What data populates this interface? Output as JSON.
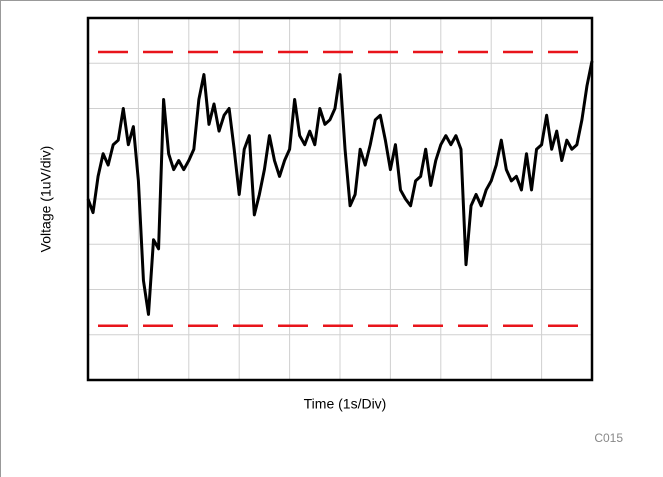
{
  "chart_data": {
    "type": "line",
    "xlabel": "Time (1s/Div)",
    "ylabel": "Voltage (1uV/div)",
    "code": "C015",
    "xlim": [
      0,
      10
    ],
    "ylim": [
      -4,
      4
    ],
    "xticks": [
      0,
      1,
      2,
      3,
      4,
      5,
      6,
      7,
      8,
      9,
      10
    ],
    "yticks": [
      -4,
      -3,
      -2,
      -1,
      0,
      1,
      2,
      3,
      4
    ],
    "grid": true,
    "limit_lines": [
      3.25,
      -2.8
    ],
    "limit_color": "#e8141b",
    "series": [
      {
        "color": "#000000",
        "x": [
          0,
          0.1,
          0.2,
          0.3,
          0.4,
          0.5,
          0.6,
          0.7,
          0.8,
          0.9,
          1,
          1.1,
          1.2,
          1.3,
          1.4,
          1.5,
          1.6,
          1.7,
          1.8,
          1.9,
          2,
          2.1,
          2.2,
          2.3,
          2.4,
          2.5,
          2.6,
          2.7,
          2.8,
          2.9,
          3,
          3.1,
          3.2,
          3.3,
          3.4,
          3.5,
          3.6,
          3.7,
          3.8,
          3.9,
          4,
          4.1,
          4.2,
          4.3,
          4.4,
          4.5,
          4.6,
          4.7,
          4.8,
          4.9,
          5,
          5.1,
          5.2,
          5.3,
          5.4,
          5.5,
          5.6,
          5.7,
          5.8,
          5.9,
          6,
          6.1,
          6.2,
          6.3,
          6.4,
          6.5,
          6.6,
          6.7,
          6.8,
          6.9,
          7,
          7.1,
          7.2,
          7.3,
          7.4,
          7.5,
          7.6,
          7.7,
          7.8,
          7.9,
          8,
          8.1,
          8.2,
          8.3,
          8.4,
          8.5,
          8.6,
          8.7,
          8.8,
          8.9,
          9,
          9.1,
          9.2,
          9.3,
          9.4,
          9.5,
          9.6,
          9.7,
          9.8,
          9.9,
          10
        ],
        "values": [
          0,
          -0.3,
          0.5,
          1,
          0.75,
          1.2,
          1.3,
          2,
          1.2,
          1.6,
          0.4,
          -1.8,
          -2.55,
          -0.9,
          -1.1,
          2.2,
          1,
          0.65,
          0.85,
          0.65,
          0.85,
          1.1,
          2.2,
          2.75,
          1.65,
          2.1,
          1.5,
          1.85,
          2,
          1.1,
          0.1,
          1.1,
          1.4,
          -0.35,
          0.1,
          0.65,
          1.4,
          0.85,
          0.5,
          0.85,
          1.1,
          2.2,
          1.4,
          1.2,
          1.5,
          1.2,
          2,
          1.65,
          1.75,
          2,
          2.75,
          1.1,
          -0.15,
          0.1,
          1.1,
          0.75,
          1.2,
          1.75,
          1.85,
          1.3,
          0.65,
          1.2,
          0.2,
          0,
          -0.15,
          0.4,
          0.5,
          1.1,
          0.3,
          0.85,
          1.2,
          1.4,
          1.2,
          1.4,
          1.1,
          -1.45,
          -0.15,
          0.1,
          -0.15,
          0.2,
          0.4,
          0.75,
          1.3,
          0.65,
          0.4,
          0.5,
          0.2,
          1,
          0.2,
          1.1,
          1.2,
          1.85,
          1.1,
          1.5,
          0.85,
          1.3,
          1.1,
          1.2,
          1.75,
          2.5,
          3.05
        ]
      }
    ]
  }
}
